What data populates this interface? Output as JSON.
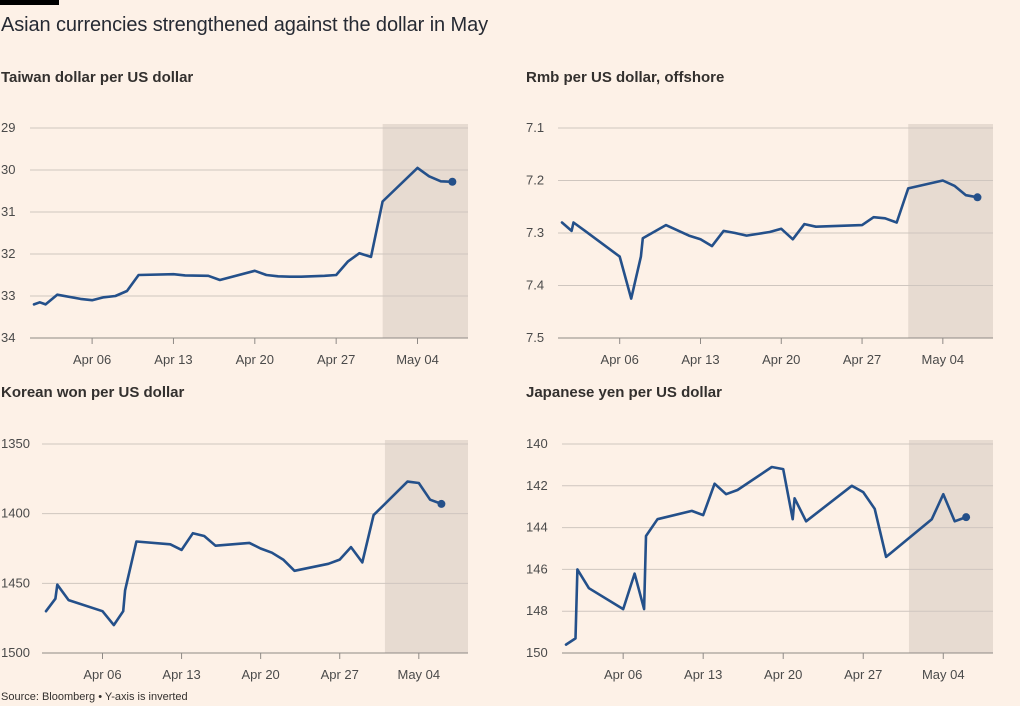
{
  "title": "Asian currencies strengthened against the dollar in May",
  "source": "Source: Bloomberg • Y-axis is inverted",
  "colors": {
    "line": "#24508a",
    "shade": "#e7dbd1",
    "grid": "#cfc6bf",
    "background": "#fdf1e7"
  },
  "chart_data": [
    {
      "type": "line",
      "title": "Taiwan dollar per US dollar",
      "y_inverted": true,
      "ylim": [
        29,
        34
      ],
      "yticks": [
        29,
        30,
        31,
        32,
        33,
        34
      ],
      "ytick_labels": [
        "29",
        "30",
        "31",
        "32",
        "33",
        "34"
      ],
      "xlim": [
        "2024-04-01",
        "2024-05-08"
      ],
      "xticks": [
        "2024-04-06",
        "2024-04-13",
        "2024-04-20",
        "2024-04-27",
        "2024-05-04"
      ],
      "xtick_labels": [
        "Apr 06",
        "Apr 13",
        "Apr 20",
        "Apr 27",
        "May 04"
      ],
      "shaded_from": "2024-05-01",
      "points": [
        {
          "date": "2024-04-01",
          "value": 33.2
        },
        {
          "date": "2024-04-01T12:00",
          "value": 33.15
        },
        {
          "date": "2024-04-02",
          "value": 33.2
        },
        {
          "date": "2024-04-03",
          "value": 32.97
        },
        {
          "date": "2024-04-05",
          "value": 33.07
        },
        {
          "date": "2024-04-06",
          "value": 33.1
        },
        {
          "date": "2024-04-07",
          "value": 33.03
        },
        {
          "date": "2024-04-08",
          "value": 33.0
        },
        {
          "date": "2024-04-09",
          "value": 32.88
        },
        {
          "date": "2024-04-10",
          "value": 32.5
        },
        {
          "date": "2024-04-13",
          "value": 32.48
        },
        {
          "date": "2024-04-14",
          "value": 32.51
        },
        {
          "date": "2024-04-16",
          "value": 32.52
        },
        {
          "date": "2024-04-17",
          "value": 32.62
        },
        {
          "date": "2024-04-20",
          "value": 32.4
        },
        {
          "date": "2024-04-21",
          "value": 32.5
        },
        {
          "date": "2024-04-22",
          "value": 32.53
        },
        {
          "date": "2024-04-23",
          "value": 32.54
        },
        {
          "date": "2024-04-24",
          "value": 32.54
        },
        {
          "date": "2024-04-26",
          "value": 32.52
        },
        {
          "date": "2024-04-27",
          "value": 32.5
        },
        {
          "date": "2024-04-28",
          "value": 32.18
        },
        {
          "date": "2024-04-29",
          "value": 31.98
        },
        {
          "date": "2024-04-30",
          "value": 32.07
        },
        {
          "date": "2024-05-01",
          "value": 30.75
        },
        {
          "date": "2024-05-04",
          "value": 29.95
        },
        {
          "date": "2024-05-05",
          "value": 30.15
        },
        {
          "date": "2024-05-06",
          "value": 30.27
        },
        {
          "date": "2024-05-07",
          "value": 30.28
        }
      ]
    },
    {
      "type": "line",
      "title": "Rmb per US dollar, offshore",
      "y_inverted": true,
      "ylim": [
        7.1,
        7.5
      ],
      "yticks": [
        7.1,
        7.2,
        7.3,
        7.4,
        7.5
      ],
      "ytick_labels": [
        "7.1",
        "7.2",
        "7.3",
        "7.4",
        "7.5"
      ],
      "xlim": [
        "2024-04-01",
        "2024-05-08"
      ],
      "xticks": [
        "2024-04-06",
        "2024-04-13",
        "2024-04-20",
        "2024-04-27",
        "2024-05-04"
      ],
      "xtick_labels": [
        "Apr 06",
        "Apr 13",
        "Apr 20",
        "Apr 27",
        "May 04"
      ],
      "shaded_from": "2024-05-01",
      "points": [
        {
          "date": "2024-04-01",
          "value": 7.28
        },
        {
          "date": "2024-04-01T20:00",
          "value": 7.296
        },
        {
          "date": "2024-04-02",
          "value": 7.28
        },
        {
          "date": "2024-04-03",
          "value": 7.296
        },
        {
          "date": "2024-04-06",
          "value": 7.345
        },
        {
          "date": "2024-04-07",
          "value": 7.425
        },
        {
          "date": "2024-04-07T20:00",
          "value": 7.345
        },
        {
          "date": "2024-04-08",
          "value": 7.31
        },
        {
          "date": "2024-04-10",
          "value": 7.285
        },
        {
          "date": "2024-04-12",
          "value": 7.305
        },
        {
          "date": "2024-04-13",
          "value": 7.312
        },
        {
          "date": "2024-04-14",
          "value": 7.325
        },
        {
          "date": "2024-04-15",
          "value": 7.296
        },
        {
          "date": "2024-04-16",
          "value": 7.3
        },
        {
          "date": "2024-04-17",
          "value": 7.305
        },
        {
          "date": "2024-04-19",
          "value": 7.298
        },
        {
          "date": "2024-04-20",
          "value": 7.292
        },
        {
          "date": "2024-04-21",
          "value": 7.312
        },
        {
          "date": "2024-04-22",
          "value": 7.283
        },
        {
          "date": "2024-04-23",
          "value": 7.288
        },
        {
          "date": "2024-04-27",
          "value": 7.285
        },
        {
          "date": "2024-04-28",
          "value": 7.27
        },
        {
          "date": "2024-04-29",
          "value": 7.272
        },
        {
          "date": "2024-04-30",
          "value": 7.28
        },
        {
          "date": "2024-05-01",
          "value": 7.215
        },
        {
          "date": "2024-05-04",
          "value": 7.2
        },
        {
          "date": "2024-05-05",
          "value": 7.21
        },
        {
          "date": "2024-05-06",
          "value": 7.228
        },
        {
          "date": "2024-05-07",
          "value": 7.232
        }
      ]
    },
    {
      "type": "line",
      "title": "Korean won per US dollar",
      "y_inverted": true,
      "ylim": [
        1350,
        1500
      ],
      "yticks": [
        1350,
        1400,
        1450,
        1500
      ],
      "ytick_labels": [
        "1350",
        "1400",
        "1450",
        "1500"
      ],
      "xlim": [
        "2024-04-01",
        "2024-05-08"
      ],
      "xticks": [
        "2024-04-06",
        "2024-04-13",
        "2024-04-20",
        "2024-04-27",
        "2024-05-04"
      ],
      "xtick_labels": [
        "Apr 06",
        "Apr 13",
        "Apr 20",
        "Apr 27",
        "May 04"
      ],
      "shaded_from": "2024-05-01",
      "points": [
        {
          "date": "2024-04-01",
          "value": 1470
        },
        {
          "date": "2024-04-01T20:00",
          "value": 1461
        },
        {
          "date": "2024-04-02",
          "value": 1451
        },
        {
          "date": "2024-04-03",
          "value": 1462
        },
        {
          "date": "2024-04-06",
          "value": 1470
        },
        {
          "date": "2024-04-07",
          "value": 1480
        },
        {
          "date": "2024-04-07T20:00",
          "value": 1470
        },
        {
          "date": "2024-04-08",
          "value": 1455
        },
        {
          "date": "2024-04-09",
          "value": 1420
        },
        {
          "date": "2024-04-12",
          "value": 1422
        },
        {
          "date": "2024-04-13",
          "value": 1426
        },
        {
          "date": "2024-04-14",
          "value": 1414
        },
        {
          "date": "2024-04-15",
          "value": 1416
        },
        {
          "date": "2024-04-16",
          "value": 1423
        },
        {
          "date": "2024-04-19",
          "value": 1421
        },
        {
          "date": "2024-04-20",
          "value": 1425
        },
        {
          "date": "2024-04-21",
          "value": 1428
        },
        {
          "date": "2024-04-22",
          "value": 1433
        },
        {
          "date": "2024-04-23",
          "value": 1441
        },
        {
          "date": "2024-04-26",
          "value": 1436
        },
        {
          "date": "2024-04-27",
          "value": 1433
        },
        {
          "date": "2024-04-28",
          "value": 1424
        },
        {
          "date": "2024-04-29",
          "value": 1435
        },
        {
          "date": "2024-04-30",
          "value": 1401
        },
        {
          "date": "2024-05-03",
          "value": 1377
        },
        {
          "date": "2024-05-04",
          "value": 1378
        },
        {
          "date": "2024-05-05",
          "value": 1390
        },
        {
          "date": "2024-05-06",
          "value": 1393
        }
      ]
    },
    {
      "type": "line",
      "title": "Japanese yen per US dollar",
      "y_inverted": true,
      "ylim": [
        140,
        150
      ],
      "yticks": [
        140,
        142,
        144,
        146,
        148,
        150
      ],
      "ytick_labels": [
        "140",
        "142",
        "144",
        "146",
        "148",
        "150"
      ],
      "xlim": [
        "2024-04-01",
        "2024-05-08"
      ],
      "xticks": [
        "2024-04-06",
        "2024-04-13",
        "2024-04-20",
        "2024-04-27",
        "2024-05-04"
      ],
      "xtick_labels": [
        "Apr 06",
        "Apr 13",
        "Apr 20",
        "Apr 27",
        "May 04"
      ],
      "shaded_from": "2024-05-01",
      "points": [
        {
          "date": "2024-04-01",
          "value": 149.6
        },
        {
          "date": "2024-04-01T20:00",
          "value": 149.3
        },
        {
          "date": "2024-04-02",
          "value": 146.0
        },
        {
          "date": "2024-04-03",
          "value": 146.9
        },
        {
          "date": "2024-04-06",
          "value": 147.9
        },
        {
          "date": "2024-04-07",
          "value": 146.2
        },
        {
          "date": "2024-04-07T20:00",
          "value": 147.9
        },
        {
          "date": "2024-04-08",
          "value": 144.4
        },
        {
          "date": "2024-04-09",
          "value": 143.6
        },
        {
          "date": "2024-04-12",
          "value": 143.2
        },
        {
          "date": "2024-04-13",
          "value": 143.4
        },
        {
          "date": "2024-04-14",
          "value": 141.9
        },
        {
          "date": "2024-04-15",
          "value": 142.4
        },
        {
          "date": "2024-04-16",
          "value": 142.2
        },
        {
          "date": "2024-04-19",
          "value": 141.1
        },
        {
          "date": "2024-04-20",
          "value": 141.2
        },
        {
          "date": "2024-04-20T20:00",
          "value": 143.6
        },
        {
          "date": "2024-04-21",
          "value": 142.6
        },
        {
          "date": "2024-04-22",
          "value": 143.7
        },
        {
          "date": "2024-04-26",
          "value": 142.0
        },
        {
          "date": "2024-04-27",
          "value": 142.3
        },
        {
          "date": "2024-04-28",
          "value": 143.1
        },
        {
          "date": "2024-04-29",
          "value": 145.4
        },
        {
          "date": "2024-05-03",
          "value": 143.6
        },
        {
          "date": "2024-05-04",
          "value": 142.4
        },
        {
          "date": "2024-05-05",
          "value": 143.7
        },
        {
          "date": "2024-05-06",
          "value": 143.5
        }
      ]
    }
  ]
}
